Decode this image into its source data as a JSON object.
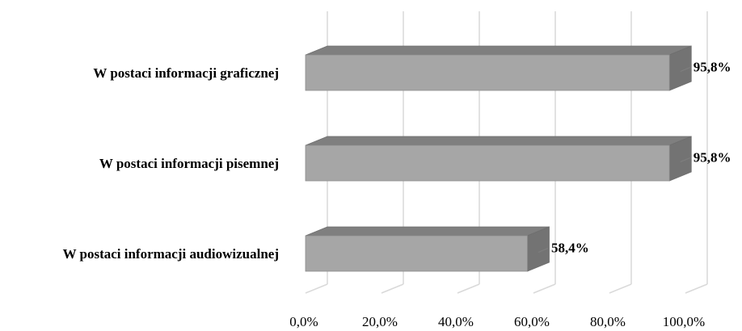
{
  "chart_data": {
    "type": "bar",
    "orientation": "horizontal",
    "style": "3d",
    "categories": [
      "W postaci informacji graficznej",
      "W postaci informacji pisemnej",
      "W postaci informacji audiowizualnej"
    ],
    "values": [
      95.8,
      95.8,
      58.4
    ],
    "value_labels": [
      "95,8%",
      "95,8%",
      "58,4%"
    ],
    "xlim": [
      0,
      100
    ],
    "x_ticks": [
      0,
      20,
      40,
      60,
      80,
      100
    ],
    "x_tick_labels": [
      "0,0%",
      "20,0%",
      "40,0%",
      "60,0%",
      "80,0%",
      "100,0%"
    ],
    "grid": true,
    "legend": "none",
    "colors": {
      "bar_front": "#a6a6a6",
      "bar_top": "#7f7f7f",
      "bar_side": "#737373",
      "grid": "#d9d9d9"
    }
  }
}
